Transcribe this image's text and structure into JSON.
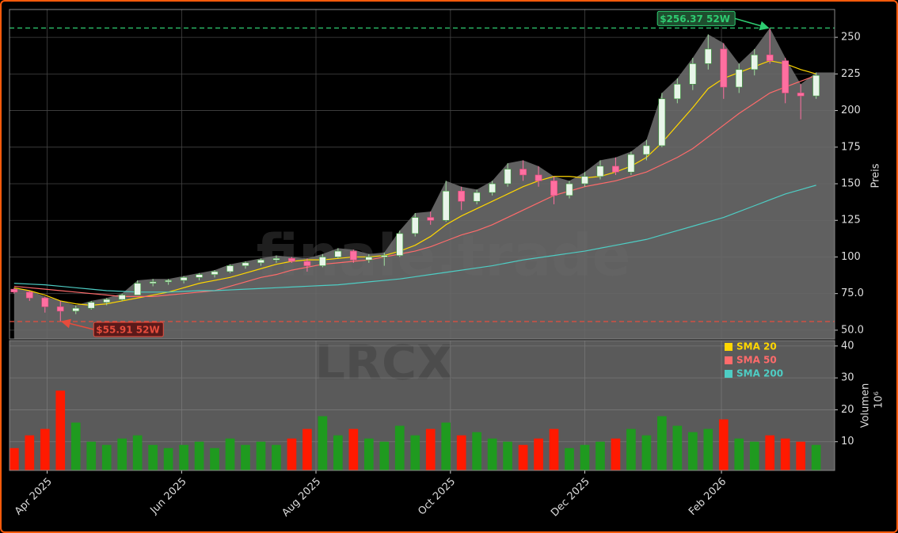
{
  "chart_data": [
    {
      "type": "candlestick",
      "categories": [
        null,
        null,
        null,
        null,
        null,
        null,
        null,
        null,
        null,
        null,
        null,
        null,
        null,
        null,
        null,
        null,
        null,
        null,
        null,
        null,
        null,
        null,
        null,
        null,
        null,
        null,
        null,
        null,
        null,
        null,
        null,
        null,
        null,
        null,
        null,
        null,
        null,
        null,
        null,
        null,
        null,
        null,
        null,
        null,
        null,
        null,
        null,
        null,
        null,
        null,
        null,
        null,
        null
      ],
      "open": [
        78,
        76,
        72,
        66,
        63,
        65,
        69,
        71,
        74,
        82,
        83,
        84,
        86,
        88,
        90,
        94,
        96,
        98,
        99,
        97,
        94,
        100,
        104,
        98,
        100,
        101,
        116,
        127,
        125,
        145,
        138,
        144,
        150,
        160,
        156,
        152,
        142,
        150,
        155,
        162,
        158,
        170,
        176,
        208,
        218,
        232,
        242,
        216,
        228,
        238,
        234,
        212,
        210
      ],
      "high": [
        79,
        77,
        73,
        70,
        67,
        70,
        72,
        75,
        84,
        85,
        85,
        87,
        89,
        91,
        95,
        97,
        99,
        101,
        100,
        99,
        102,
        106,
        105,
        102,
        103,
        118,
        130,
        131,
        152,
        148,
        146,
        152,
        164,
        166,
        162,
        155,
        152,
        158,
        166,
        168,
        172,
        180,
        212,
        222,
        236,
        252,
        246,
        232,
        242,
        256.37,
        236,
        218,
        226
      ],
      "low": [
        75,
        70,
        62,
        55.91,
        61,
        64,
        67,
        70,
        74,
        80,
        81,
        82,
        84,
        86,
        89,
        92,
        94,
        96,
        96,
        90,
        93,
        99,
        96,
        96,
        94,
        100,
        114,
        122,
        124,
        132,
        136,
        142,
        148,
        152,
        148,
        136,
        140,
        148,
        153,
        156,
        156,
        166,
        175,
        205,
        214,
        228,
        208,
        212,
        224,
        232,
        205,
        194,
        208
      ],
      "close": [
        76,
        72,
        66,
        63,
        65,
        69,
        71,
        74,
        82,
        83,
        84,
        86,
        88,
        90,
        94,
        96,
        98,
        99,
        97,
        94,
        100,
        104,
        98,
        100,
        101,
        116,
        127,
        125,
        145,
        138,
        144,
        150,
        160,
        156,
        152,
        142,
        150,
        155,
        162,
        158,
        170,
        176,
        208,
        218,
        232,
        242,
        216,
        228,
        238,
        234,
        212,
        210,
        224
      ],
      "up_color": "#e8f5e9",
      "down_color": "#ff6fa0",
      "area_color": "#6a6a6a",
      "series": [
        {
          "name": "SMA 20",
          "color": "#ffd700",
          "values": [
            79,
            77,
            74,
            70,
            68,
            67,
            68,
            70,
            72,
            74,
            76,
            79,
            82,
            84,
            86,
            89,
            92,
            95,
            97,
            98,
            98,
            99,
            100,
            100,
            101,
            104,
            108,
            114,
            122,
            128,
            133,
            138,
            143,
            148,
            152,
            155,
            155,
            154,
            155,
            158,
            162,
            168,
            178,
            190,
            202,
            215,
            222,
            226,
            230,
            234,
            232,
            228,
            225
          ]
        },
        {
          "name": "SMA 50",
          "color": "#ff6b6b",
          "values": [
            80,
            79,
            78,
            77,
            76,
            75,
            74,
            73,
            73,
            73,
            74,
            75,
            76,
            77,
            80,
            83,
            86,
            88,
            91,
            93,
            95,
            96,
            97,
            98,
            100,
            102,
            104,
            107,
            111,
            115,
            118,
            122,
            127,
            132,
            137,
            142,
            145,
            148,
            150,
            152,
            155,
            158,
            163,
            168,
            174,
            182,
            190,
            198,
            205,
            212,
            216,
            220,
            224
          ]
        },
        {
          "name": "SMA 200",
          "color": "#4ecdc4",
          "values": [
            82,
            81.5,
            81,
            80,
            79,
            78,
            77,
            76.5,
            76,
            76,
            76,
            76.5,
            77,
            77,
            77.5,
            78,
            78.5,
            79,
            79.5,
            80,
            80.5,
            81,
            82,
            83,
            84,
            85,
            86.5,
            88,
            89.5,
            91,
            92.5,
            94,
            96,
            98,
            99.5,
            101,
            102.5,
            104,
            106,
            108,
            110,
            112,
            115,
            118,
            121,
            124,
            127,
            131,
            135,
            139,
            143,
            146,
            149
          ]
        }
      ],
      "xlim": [
        -0.3,
        53.2
      ],
      "ylim": [
        44,
        269
      ],
      "yticks": [
        {
          "value": 50,
          "label": "50.0"
        },
        {
          "value": 75,
          "label": "75.0"
        },
        100,
        125,
        150,
        175,
        200,
        225,
        250
      ],
      "ylabel": "Preis",
      "grid": true,
      "annotations": [
        {
          "value": 256.37,
          "label": "$256.37 52W",
          "color": "#2ecc71"
        },
        {
          "value": 55.91,
          "label": "$55.91 52W",
          "color": "#e74c3c"
        }
      ],
      "watermarks": [
        "finale.trade",
        "LRCX"
      ]
    },
    {
      "type": "bar",
      "values": [
        8,
        12,
        14,
        26,
        16,
        10,
        9,
        11,
        12,
        9,
        8,
        9,
        10,
        8,
        11,
        9,
        10,
        9,
        11,
        14,
        18,
        12,
        14,
        11,
        10,
        15,
        12,
        14,
        16,
        12,
        13,
        11,
        10,
        9,
        11,
        14,
        8,
        9,
        10,
        11,
        14,
        12,
        18,
        15,
        13,
        14,
        17,
        11,
        10,
        12,
        11,
        10,
        9
      ],
      "up_color": "#1f9a1f",
      "down_color": "#ff1a00",
      "xlim": [
        -0.3,
        53.2
      ],
      "xticks": [
        {
          "value": 2.14,
          "label": "Apr 2025"
        },
        {
          "value": 10.86,
          "label": "Jun 2025"
        },
        {
          "value": 19.57,
          "label": "Aug 2025"
        },
        {
          "value": 28.29,
          "label": "Oct 2025"
        },
        {
          "value": 37.0,
          "label": "Dec 2025"
        },
        {
          "value": 45.86,
          "label": "Feb 2026"
        }
      ],
      "ylim": [
        1,
        41.7
      ],
      "yticks": [
        10,
        20,
        30,
        40
      ],
      "ylabel": "Volumen",
      "yunit": "10⁶",
      "legend": "upper right",
      "grid": true
    }
  ]
}
